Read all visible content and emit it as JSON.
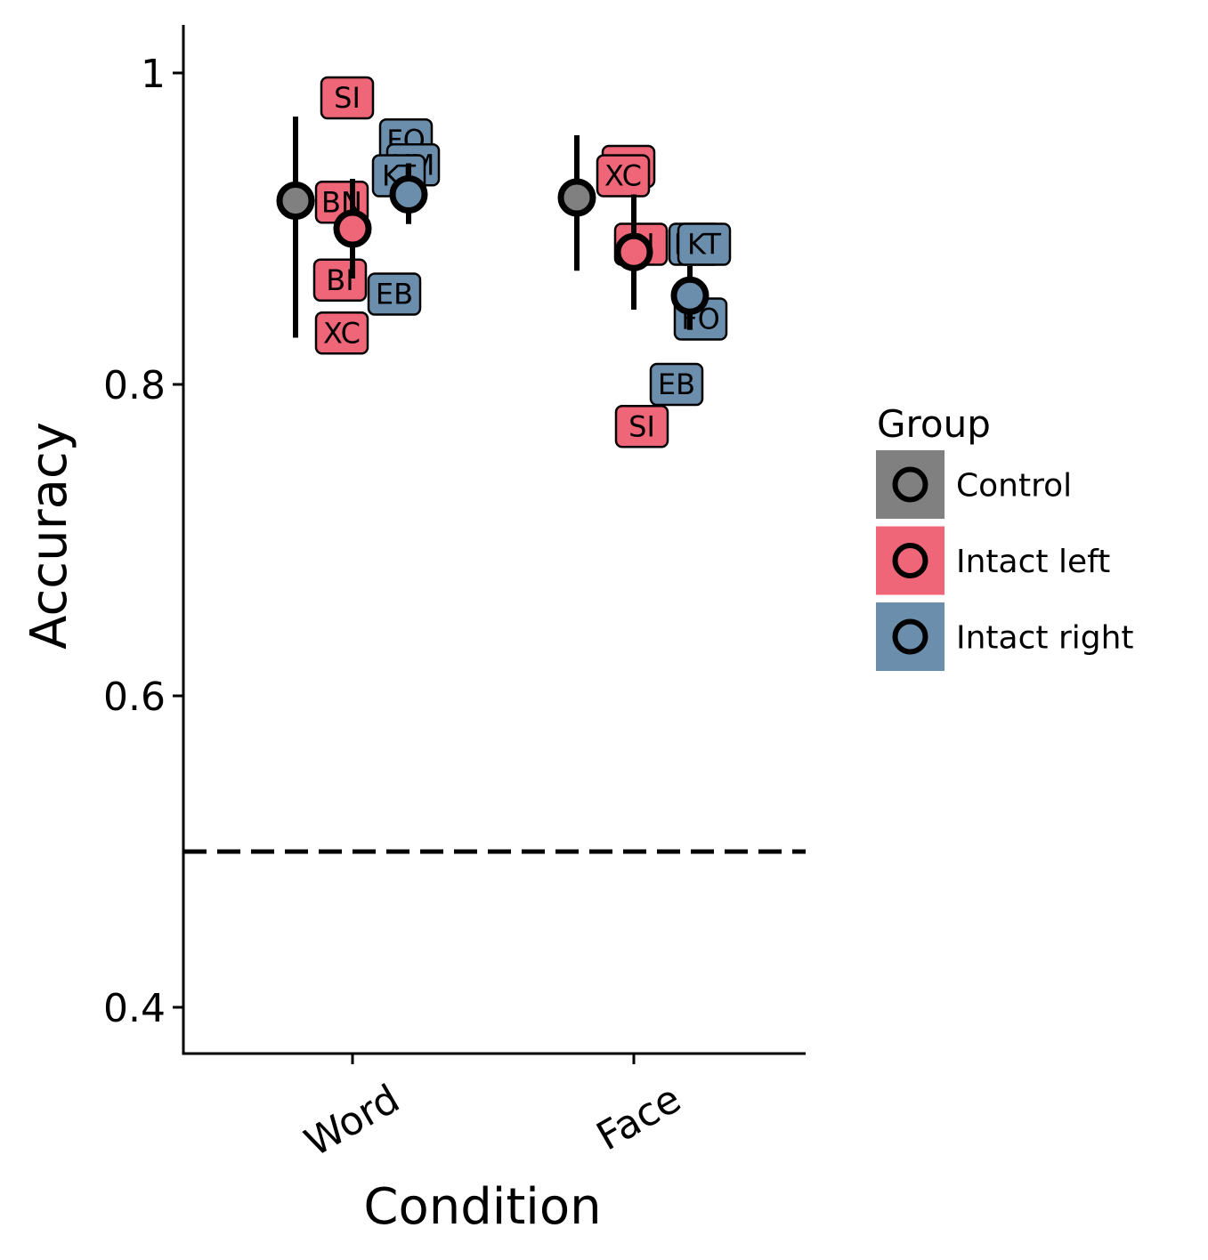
{
  "chart_data": {
    "type": "scatter",
    "title": "",
    "xlabel": "Condition",
    "ylabel": "Accuracy",
    "ylim": [
      0.37,
      1.03
    ],
    "yticks": [
      0.4,
      0.6,
      0.8,
      1
    ],
    "ytick_labels": [
      "0.4",
      "0.6",
      "0.8",
      "1"
    ],
    "categories": [
      "Word",
      "Face"
    ],
    "reference_line": 0.5,
    "legend": {
      "title": "Group",
      "position": "right",
      "entries": [
        {
          "name": "Control",
          "color": "#808080"
        },
        {
          "name": "Intact left",
          "color": "#EE6677"
        },
        {
          "name": "Intact right",
          "color": "#6C8EAD"
        }
      ]
    },
    "series": [
      {
        "name": "Control",
        "color": "#808080",
        "means": [
          {
            "category": "Word",
            "value": 0.918,
            "low": 0.83,
            "high": 0.972
          },
          {
            "category": "Face",
            "value": 0.92,
            "low": 0.873,
            "high": 0.96
          }
        ],
        "labels": []
      },
      {
        "name": "Intact left",
        "color": "#EE6677",
        "means": [
          {
            "category": "Word",
            "value": 0.9,
            "low": 0.868,
            "high": 0.932
          },
          {
            "category": "Face",
            "value": 0.885,
            "low": 0.848,
            "high": 0.922
          }
        ],
        "labels": [
          {
            "category": "Word",
            "text": "SI",
            "value": 0.984
          },
          {
            "category": "Word",
            "text": "BN",
            "value": 0.917
          },
          {
            "category": "Word",
            "text": "BI",
            "value": 0.867
          },
          {
            "category": "Word",
            "text": "XC",
            "value": 0.833
          },
          {
            "category": "Face",
            "text": "BN",
            "value": 0.94
          },
          {
            "category": "Face",
            "text": "XC",
            "value": 0.934
          },
          {
            "category": "Face",
            "text": "BI",
            "value": 0.89
          },
          {
            "category": "Face",
            "text": "SI",
            "value": 0.773
          }
        ]
      },
      {
        "name": "Intact right",
        "color": "#6C8EAD",
        "means": [
          {
            "category": "Word",
            "value": 0.922,
            "low": 0.903,
            "high": 0.942
          },
          {
            "category": "Face",
            "value": 0.857,
            "low": 0.835,
            "high": 0.876
          }
        ],
        "labels": [
          {
            "category": "Word",
            "text": "FO",
            "value": 0.957
          },
          {
            "category": "Word",
            "text": "KM",
            "value": 0.941
          },
          {
            "category": "Word",
            "text": "KT",
            "value": 0.934
          },
          {
            "category": "Word",
            "text": "EB",
            "value": 0.858
          },
          {
            "category": "Face",
            "text": "KM",
            "value": 0.89
          },
          {
            "category": "Face",
            "text": "KT",
            "value": 0.89
          },
          {
            "category": "Face",
            "text": "FO",
            "value": 0.842
          },
          {
            "category": "Face",
            "text": "EB",
            "value": 0.8
          }
        ]
      }
    ]
  }
}
